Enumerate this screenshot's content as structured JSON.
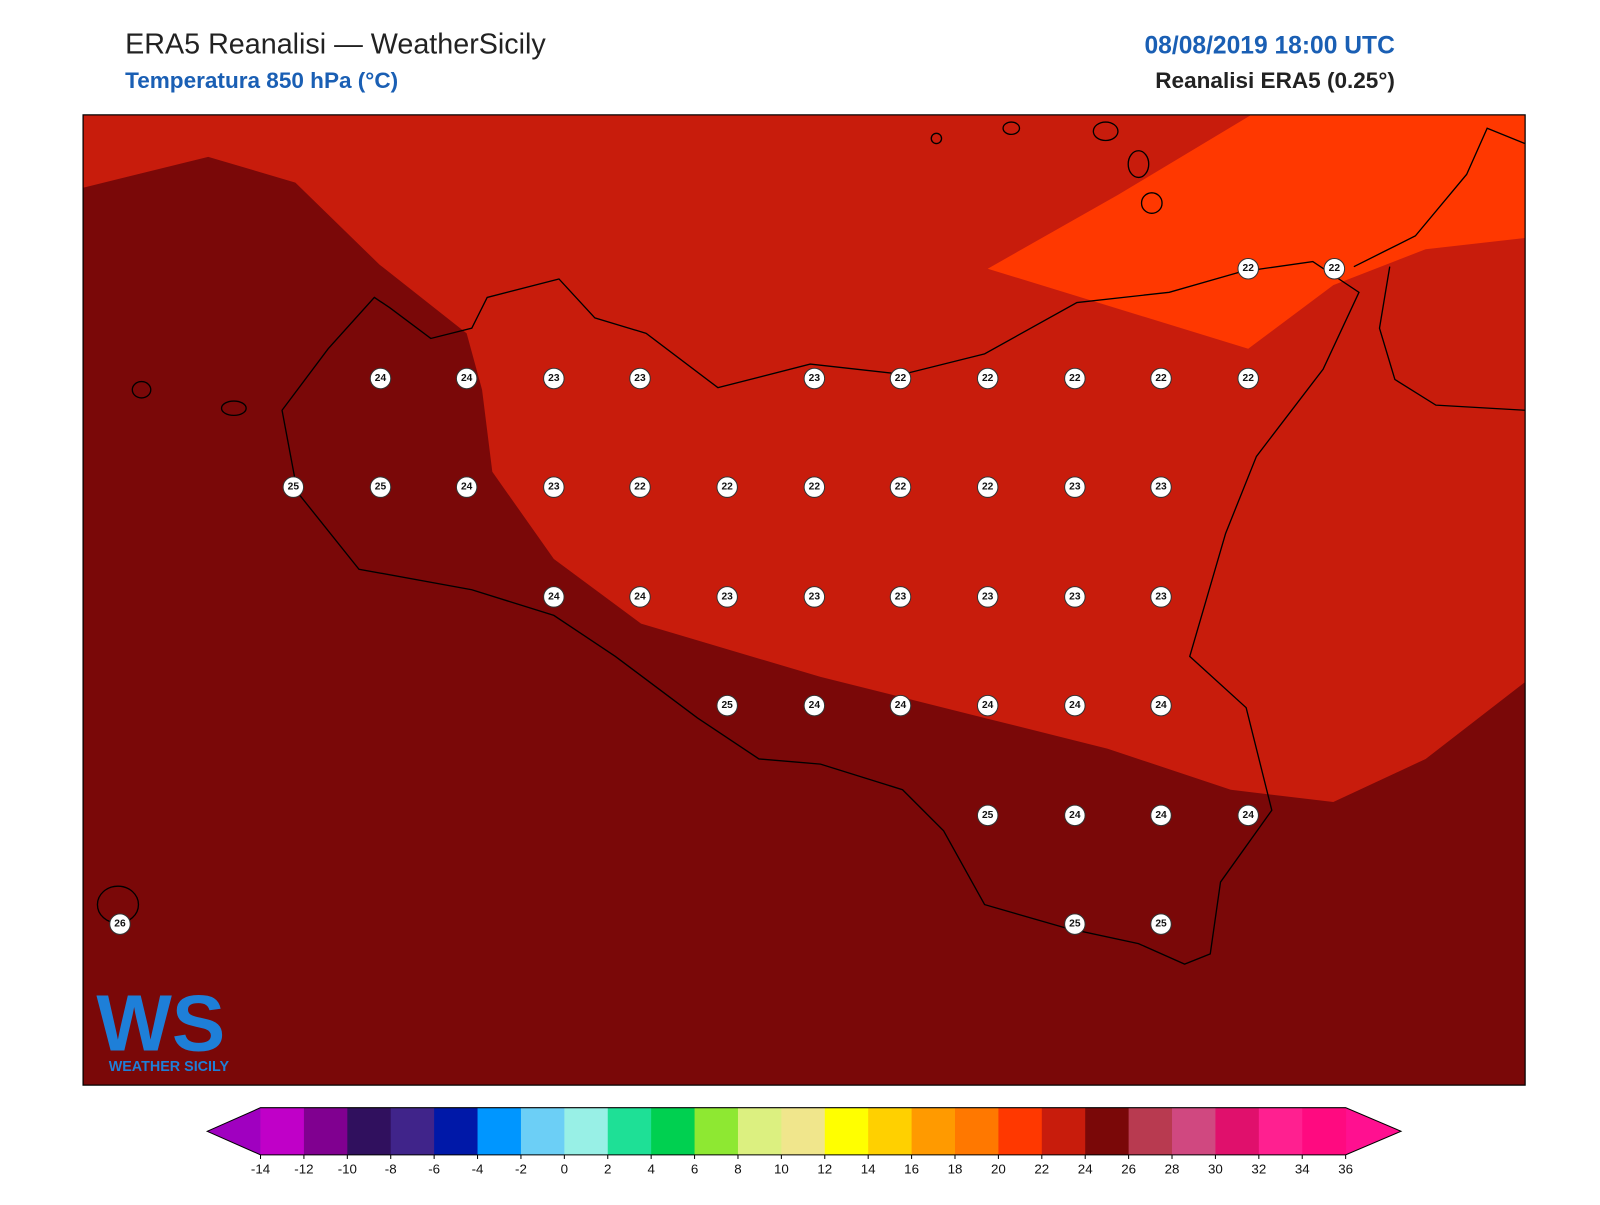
{
  "header": {
    "title": "ERA5 Reanalisi — WeatherSicily",
    "subtitle": "Temperatura 850 hPa (°C)",
    "datetime": "08/08/2019 18:00 UTC",
    "model": "Reanalisi ERA5 (0.25°)"
  },
  "stations": {
    "values": [
      22,
      22,
      24,
      24,
      23,
      23,
      23,
      22,
      22,
      22,
      22,
      22,
      25,
      25,
      24,
      23,
      22,
      22,
      22,
      22,
      22,
      23,
      23,
      24,
      24,
      23,
      23,
      23,
      23,
      23,
      23,
      25,
      24,
      24,
      24,
      24,
      24,
      25,
      24,
      24,
      24,
      26,
      25,
      25
    ]
  },
  "colorbar": {
    "ticks": [
      -14,
      -12,
      -10,
      -8,
      -6,
      -4,
      -2,
      0,
      2,
      4,
      6,
      8,
      10,
      12,
      14,
      16,
      18,
      20,
      22,
      24,
      26,
      28,
      30,
      32,
      34,
      36
    ],
    "colors": [
      "#c000c8",
      "#800090",
      "#30105e",
      "#40248a",
      "#0018a8",
      "#0096ff",
      "#6ccff6",
      "#98f0e6",
      "#1ee096",
      "#00d050",
      "#8ee832",
      "#dcf080",
      "#f0e68c",
      "#ffff00",
      "#ffd000",
      "#ff9a00",
      "#ff7800",
      "#ff3800",
      "#c81c0c",
      "#7a0808",
      "#b83a50",
      "#d04880",
      "#e0106c",
      "#ff2090",
      "#ff0a80"
    ],
    "under_color": "#a000c0",
    "over_color": "#ff1090"
  },
  "logo": {
    "letters": "WS",
    "text": "WEATHER SICILY"
  }
}
